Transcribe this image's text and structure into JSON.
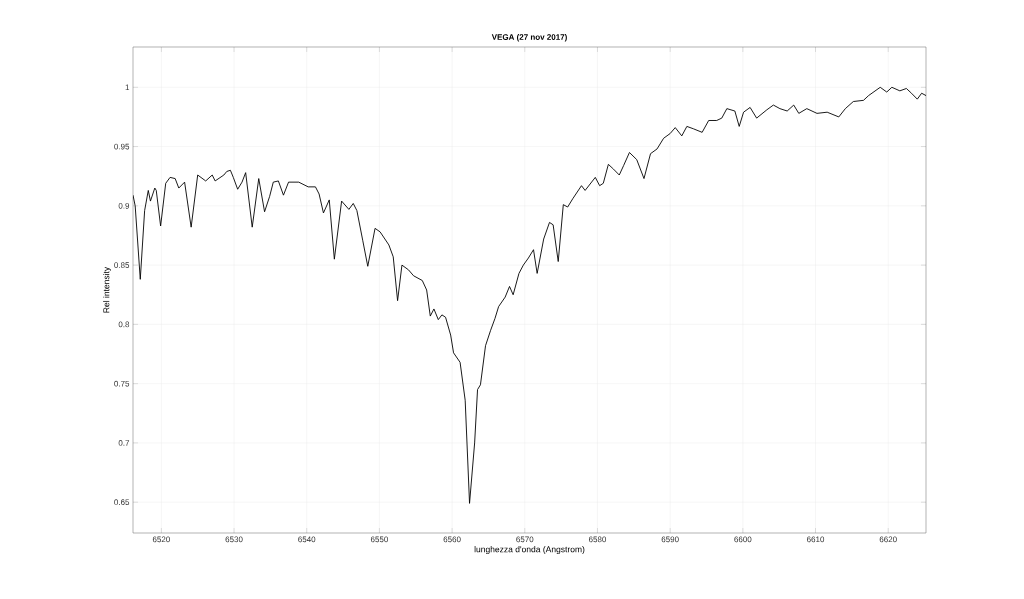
{
  "chart_data": {
    "type": "line",
    "title": "VEGA (27 nov 2017)",
    "xlabel": "lunghezza d'onda (Angstrom)",
    "ylabel": "Rel intensity",
    "xlim": [
      6516.1,
      6625.2
    ],
    "ylim": [
      0.624,
      1.034
    ],
    "xticks": [
      6520,
      6530,
      6540,
      6550,
      6560,
      6570,
      6580,
      6590,
      6600,
      6610,
      6620
    ],
    "yticks": [
      0.65,
      0.7,
      0.75,
      0.8,
      0.85,
      0.9,
      0.95,
      1
    ],
    "grid": true,
    "marker": "none",
    "line_style": "solid",
    "series": [
      {
        "color": "#000000",
        "x": [
          6516.1,
          6516.4,
          6517.1,
          6517.7,
          6518.2,
          6518.5,
          6519.1,
          6519.3,
          6519.9,
          6520.6,
          6521.2,
          6521.9,
          6522.4,
          6523.2,
          6524.1,
          6525.0,
          6526.1,
          6527.0,
          6527.4,
          6528.6,
          6529.0,
          6529.5,
          6529.9,
          6530.5,
          6531.1,
          6531.6,
          6532.5,
          6533.4,
          6534.2,
          6534.9,
          6535.4,
          6536.1,
          6536.8,
          6537.5,
          6538.9,
          6540.2,
          6541.2,
          6541.7,
          6542.3,
          6543.1,
          6543.8,
          6544.8,
          6545.8,
          6546.4,
          6546.9,
          6547.7,
          6548.4,
          6549.4,
          6550.1,
          6551.3,
          6551.9,
          6552.5,
          6553.1,
          6554.0,
          6554.7,
          6555.9,
          6556.5,
          6557.0,
          6557.5,
          6558.1,
          6558.6,
          6559.1,
          6559.8,
          6560.2,
          6561.1,
          6561.8,
          6562.4,
          6563.1,
          6563.5,
          6563.9,
          6564.6,
          6565.3,
          6565.9,
          6566.4,
          6567.3,
          6567.9,
          6568.4,
          6569.2,
          6569.8,
          6570.5,
          6571.2,
          6571.7,
          6572.6,
          6573.4,
          6573.9,
          6574.6,
          6575.3,
          6575.9,
          6576.6,
          6577.8,
          6578.3,
          6579.7,
          6580.3,
          6580.8,
          6581.5,
          6582.2,
          6583.0,
          6583.6,
          6584.4,
          6585.4,
          6586.4,
          6587.3,
          6588.2,
          6589.1,
          6590.0,
          6590.7,
          6591.6,
          6592.3,
          6593.2,
          6594.4,
          6595.3,
          6596.4,
          6597.1,
          6597.8,
          6598.9,
          6599.5,
          6600.1,
          6601.0,
          6601.9,
          6603.3,
          6604.2,
          6605.1,
          6606.1,
          6607.0,
          6607.7,
          6608.8,
          6610.2,
          6611.6,
          6613.2,
          6614.1,
          6615.2,
          6616.6,
          6617.3,
          6618.9,
          6619.8,
          6620.5,
          6621.6,
          6622.5,
          6623.2,
          6624.0,
          6624.6,
          6625.2
        ],
        "values": [
          0.909,
          0.9,
          0.838,
          0.896,
          0.913,
          0.904,
          0.915,
          0.913,
          0.883,
          0.919,
          0.924,
          0.923,
          0.915,
          0.92,
          0.882,
          0.926,
          0.921,
          0.926,
          0.921,
          0.926,
          0.929,
          0.93,
          0.924,
          0.914,
          0.92,
          0.928,
          0.882,
          0.923,
          0.895,
          0.908,
          0.92,
          0.921,
          0.909,
          0.92,
          0.92,
          0.916,
          0.916,
          0.91,
          0.894,
          0.905,
          0.855,
          0.904,
          0.897,
          0.902,
          0.896,
          0.871,
          0.849,
          0.881,
          0.878,
          0.867,
          0.857,
          0.82,
          0.85,
          0.846,
          0.841,
          0.837,
          0.829,
          0.807,
          0.813,
          0.804,
          0.808,
          0.806,
          0.791,
          0.776,
          0.768,
          0.736,
          0.649,
          0.7,
          0.745,
          0.749,
          0.782,
          0.795,
          0.805,
          0.815,
          0.823,
          0.832,
          0.825,
          0.843,
          0.85,
          0.856,
          0.863,
          0.843,
          0.872,
          0.886,
          0.884,
          0.853,
          0.901,
          0.899,
          0.906,
          0.917,
          0.913,
          0.924,
          0.917,
          0.919,
          0.935,
          0.931,
          0.926,
          0.934,
          0.945,
          0.939,
          0.923,
          0.944,
          0.948,
          0.957,
          0.961,
          0.966,
          0.959,
          0.967,
          0.965,
          0.962,
          0.972,
          0.972,
          0.974,
          0.982,
          0.98,
          0.967,
          0.979,
          0.983,
          0.974,
          0.981,
          0.985,
          0.982,
          0.98,
          0.985,
          0.978,
          0.982,
          0.978,
          0.979,
          0.975,
          0.982,
          0.988,
          0.989,
          0.993,
          1.0,
          0.996,
          1.0,
          0.997,
          0.999,
          0.995,
          0.99,
          0.995,
          0.993
        ]
      }
    ]
  }
}
